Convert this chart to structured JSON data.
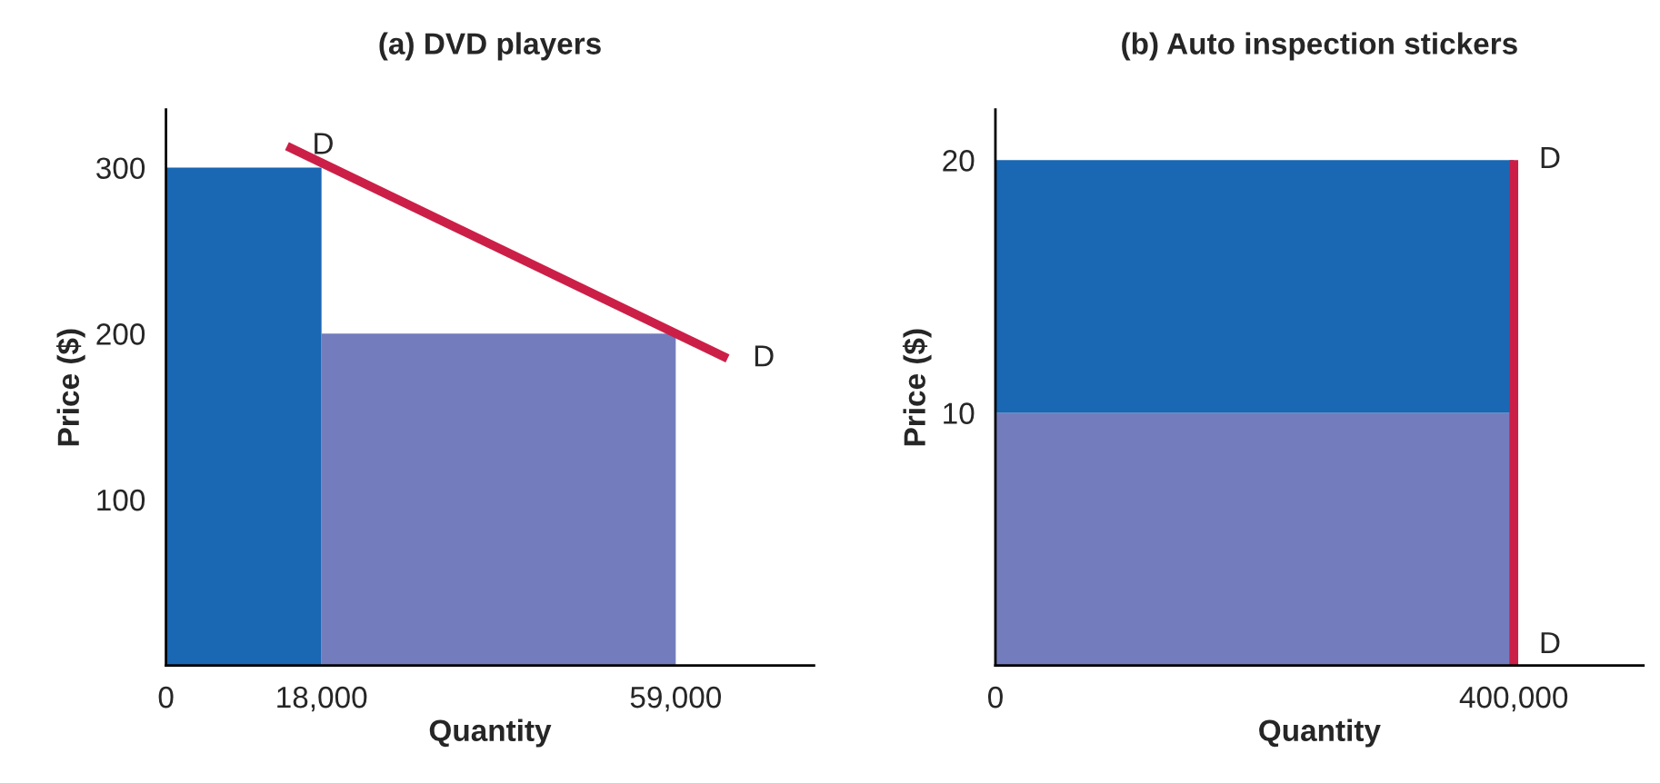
{
  "chart_data": [
    {
      "type": "area",
      "title": "(a) DVD players",
      "xlabel": "Quantity",
      "ylabel": "Price ($)",
      "xlim": [
        0,
        75000
      ],
      "ylim": [
        0,
        335
      ],
      "xticks": [
        0,
        {
          "value": 18000,
          "label": "18,000"
        },
        {
          "value": 59000,
          "label": "59,000"
        }
      ],
      "yticks": [
        100,
        200,
        300
      ],
      "grid": false,
      "legend": false,
      "series": [
        {
          "color": "#1a67b3",
          "x": [
            0,
            18000
          ],
          "values": [
            300,
            300
          ]
        },
        {
          "color": "#737dbd",
          "x": [
            18000,
            59000
          ],
          "values": [
            200,
            200
          ]
        },
        {
          "type": "line",
          "color": "#cc1f47",
          "x": [
            14000,
            65000
          ],
          "values": [
            313,
            185
          ]
        }
      ],
      "annotations": [
        {
          "text": "D",
          "x": 14000,
          "y": 313
        },
        {
          "text": "D",
          "x": 65000,
          "y": 185
        }
      ]
    },
    {
      "type": "area",
      "title": "(b) Auto inspection stickers",
      "xlabel": "Quantity",
      "ylabel": "Price ($)",
      "xlim": [
        0,
        500000
      ],
      "ylim": [
        0,
        22
      ],
      "xticks": [
        0,
        {
          "value": 400000,
          "label": "400,000"
        }
      ],
      "yticks": [
        10,
        20
      ],
      "grid": false,
      "legend": false,
      "stacked": true,
      "series": [
        {
          "color": "#737dbd",
          "x": [
            0,
            400000
          ],
          "values": [
            10,
            10
          ]
        },
        {
          "color": "#1a67b3",
          "x": [
            0,
            400000
          ],
          "values": [
            10,
            10
          ]
        },
        {
          "type": "line",
          "color": "#cc1f47",
          "x": [
            400000,
            400000
          ],
          "values": [
            0,
            20
          ]
        }
      ],
      "annotations": [
        {
          "text": "D",
          "x": 400000,
          "y": 20
        },
        {
          "text": "D",
          "x": 400000,
          "y": 0.8
        }
      ]
    }
  ]
}
